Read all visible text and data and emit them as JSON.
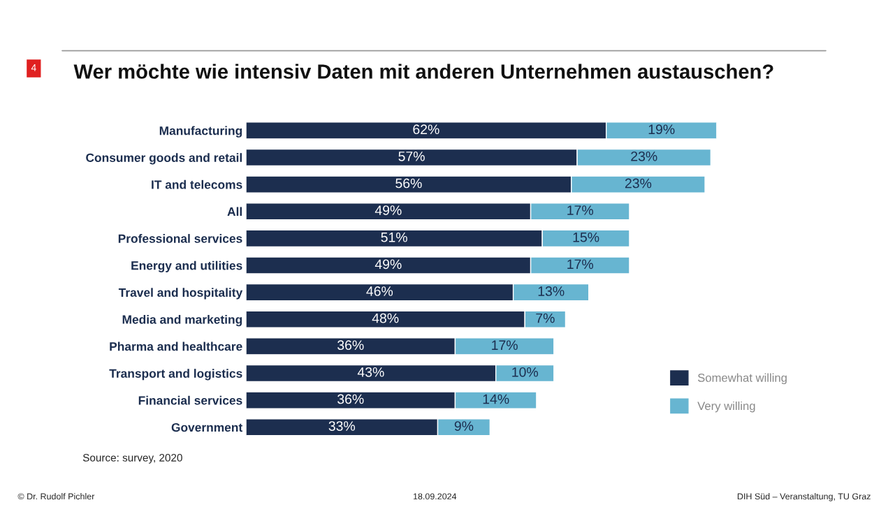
{
  "chart_data": {
    "type": "bar",
    "orientation": "horizontal",
    "stacked": true,
    "title": "Wer möchte wie intensiv Daten mit anderen Unternehmen austauschen?",
    "categories": [
      "Manufacturing",
      "Consumer goods and retail",
      "IT and telecoms",
      "All",
      "Professional services",
      "Energy and utilities",
      "Travel and hospitality",
      "Media and marketing",
      "Pharma and healthcare",
      "Transport and logistics",
      "Financial services",
      "Government"
    ],
    "series": [
      {
        "name": "Somewhat willing",
        "color": "#1c2e4f",
        "values": [
          62,
          57,
          56,
          49,
          51,
          49,
          46,
          48,
          36,
          43,
          36,
          33
        ],
        "value_labels": [
          "62%",
          "57%",
          "56%",
          "49%",
          "51%",
          "49%",
          "46%",
          "48%",
          "36%",
          "43%",
          "36%",
          "33%"
        ]
      },
      {
        "name": "Very willing",
        "color": "#67b5d1",
        "values": [
          19,
          23,
          23,
          17,
          15,
          17,
          13,
          7,
          17,
          10,
          14,
          9
        ],
        "value_labels": [
          "19%",
          "23%",
          "23%",
          "17%",
          "15%",
          "17%",
          "13%",
          "7%",
          "17%",
          "10%",
          "14%",
          "9%"
        ]
      }
    ],
    "legend": "bottom right",
    "grid": false,
    "tick_labels": "y",
    "annotations": [
      "4",
      "Source: survey, 2020",
      "© Dr. Rudolf Pichler",
      "18.09.2024",
      "DIH Süd – Veranstaltung, TU Graz"
    ]
  }
}
